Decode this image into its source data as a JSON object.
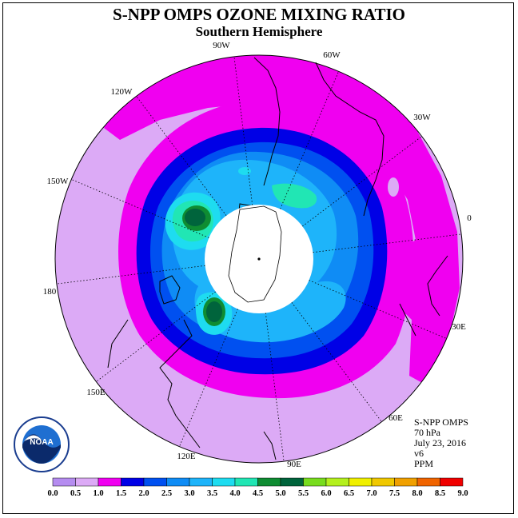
{
  "title": "S-NPP OMPS OZONE MIXING RATIO",
  "subtitle": "Southern Hemisphere",
  "info": {
    "instrument": "S-NPP OMPS",
    "pressure": "70 hPa",
    "date": "July 23, 2016",
    "version": "v6",
    "units": "PPM"
  },
  "logo_text": "NOAA",
  "longitude_labels": [
    "90W",
    "60W",
    "120W",
    "30W",
    "150W",
    "0",
    "180",
    "30E",
    "150E",
    "60E",
    "120E",
    "90E"
  ],
  "colorbar": {
    "ticks": [
      "0.0",
      "0.5",
      "1.0",
      "1.5",
      "2.0",
      "2.5",
      "3.0",
      "3.5",
      "4.0",
      "4.5",
      "5.0",
      "5.5",
      "6.0",
      "6.5",
      "7.0",
      "7.5",
      "8.0",
      "8.5",
      "9.0"
    ],
    "colors": [
      "#b58cf0",
      "#dcaaf6",
      "#f000f0",
      "#0000e6",
      "#0050f0",
      "#0f8cf5",
      "#1eb4fa",
      "#1edcf0",
      "#21e6b4",
      "#0f8c32",
      "#00643c",
      "#78dc1e",
      "#b4f01e",
      "#f0f000",
      "#f0c800",
      "#f0a000",
      "#f06400",
      "#f00000",
      "#8c5a3c"
    ]
  },
  "colors": {
    "frame": "#000000",
    "pole_cap": "#ffffff"
  }
}
